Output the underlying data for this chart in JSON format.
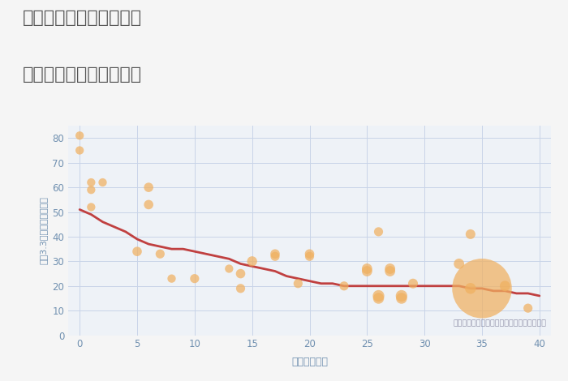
{
  "title_line1": "岐阜県関市武芸川町平の",
  "title_line2": "築年数別中古戸建て価格",
  "xlabel": "築年数（年）",
  "ylabel": "坪（3.3㎡）単価（万円）",
  "annotation": "円の大きさは、取引のあった物件面積を示す",
  "background_color": "#f5f5f5",
  "plot_bg_color": "#eef2f7",
  "grid_color": "#c8d4e8",
  "title_color": "#555555",
  "tick_color": "#7090b0",
  "xlabel_color": "#7090b0",
  "ylabel_color": "#7090b0",
  "annotation_color": "#9090a8",
  "scatter_color": "#f0b060",
  "scatter_alpha": 0.72,
  "line_color": "#c04040",
  "line_width": 2.0,
  "xlim": [
    -1,
    41
  ],
  "ylim": [
    0,
    85
  ],
  "xticks": [
    0,
    5,
    10,
    15,
    20,
    25,
    30,
    35,
    40
  ],
  "yticks": [
    0,
    10,
    20,
    30,
    40,
    50,
    60,
    70,
    80
  ],
  "scatter_x": [
    0,
    0,
    1,
    1,
    1,
    2,
    5,
    6,
    6,
    7,
    8,
    10,
    13,
    14,
    14,
    15,
    17,
    17,
    19,
    20,
    20,
    23,
    25,
    25,
    26,
    26,
    26,
    27,
    27,
    28,
    28,
    29,
    33,
    34,
    34,
    35,
    37,
    39
  ],
  "scatter_y": [
    81,
    75,
    62,
    59,
    52,
    62,
    34,
    60,
    53,
    33,
    23,
    23,
    27,
    19,
    25,
    30,
    33,
    32,
    21,
    33,
    32,
    20,
    26,
    27,
    42,
    15,
    16,
    27,
    26,
    15,
    16,
    21,
    29,
    41,
    19,
    19,
    20,
    11
  ],
  "scatter_s": [
    55,
    55,
    55,
    55,
    55,
    55,
    70,
    70,
    70,
    65,
    55,
    65,
    55,
    65,
    70,
    80,
    70,
    65,
    65,
    70,
    65,
    65,
    85,
    85,
    65,
    95,
    105,
    85,
    85,
    95,
    105,
    75,
    85,
    75,
    95,
    2800,
    85,
    65
  ],
  "trend_x": [
    0,
    1,
    2,
    3,
    4,
    5,
    6,
    7,
    8,
    9,
    10,
    11,
    12,
    13,
    14,
    15,
    16,
    17,
    18,
    19,
    20,
    21,
    22,
    23,
    24,
    25,
    26,
    27,
    28,
    29,
    30,
    31,
    32,
    33,
    34,
    35,
    36,
    37,
    38,
    39,
    40
  ],
  "trend_y": [
    51,
    49,
    46,
    44,
    42,
    39,
    37,
    36,
    35,
    35,
    34,
    33,
    32,
    31,
    29,
    28,
    27,
    26,
    24,
    23,
    22,
    21,
    21,
    20,
    20,
    20,
    20,
    20,
    20,
    20,
    20,
    20,
    20,
    20,
    19,
    19,
    18,
    18,
    17,
    17,
    16
  ]
}
